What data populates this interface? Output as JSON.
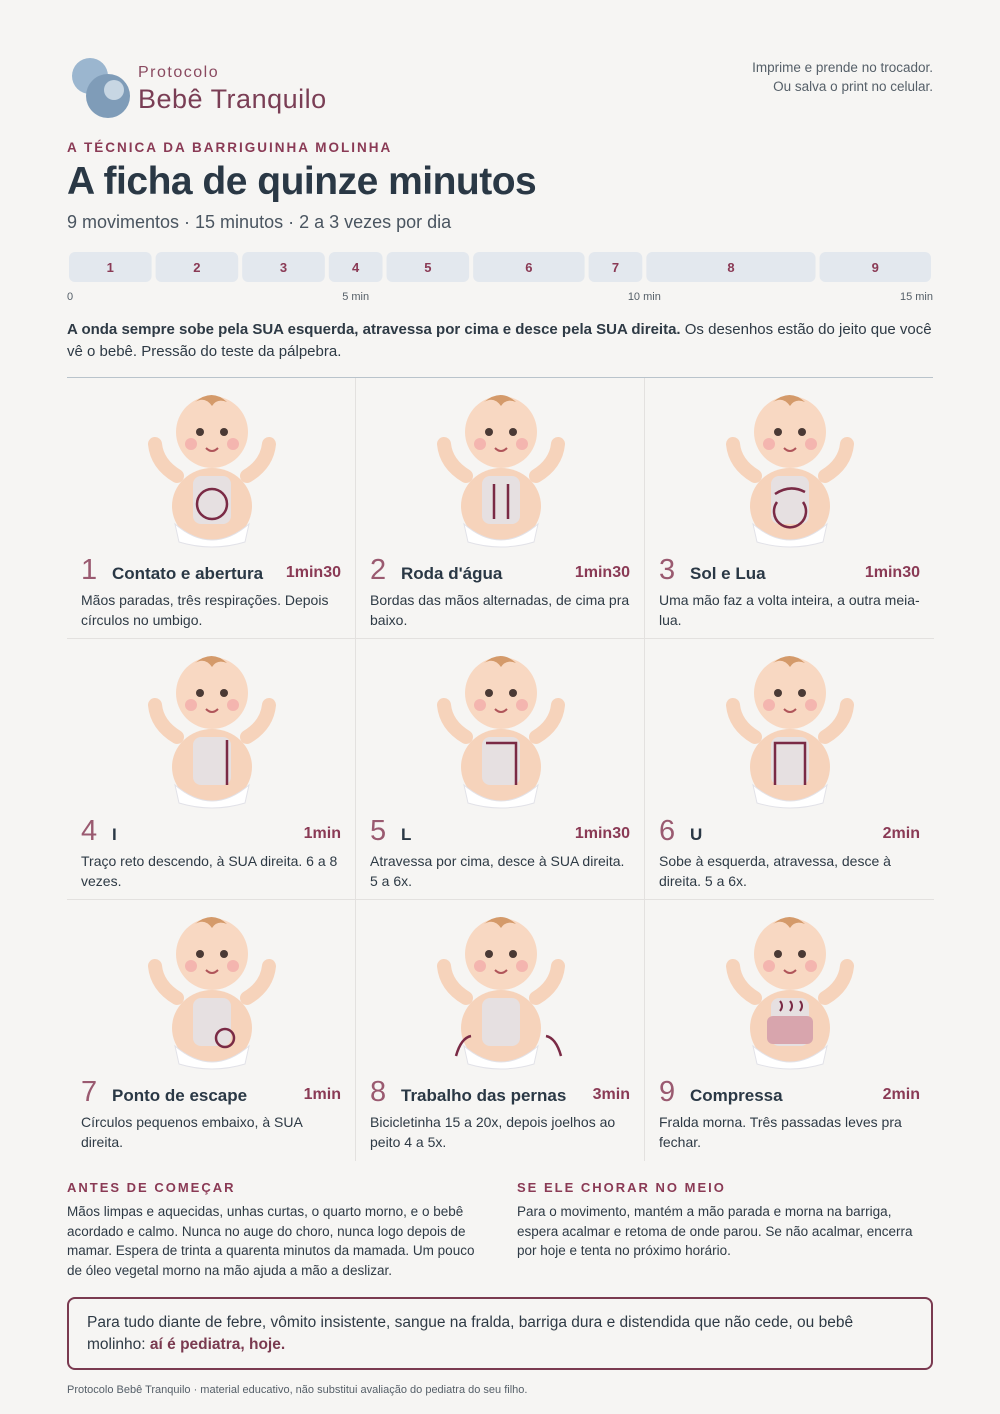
{
  "header": {
    "brand_small": "Protocolo",
    "brand": "Bebê Tranquilo",
    "note": [
      "Imprime e prende no trocador.",
      "Ou salva o print no celular."
    ]
  },
  "kicker": "A TÉCNICA DA BARRIGUINHA MOLINHA",
  "title": "A ficha de quinze minutos",
  "subtitle": "9 movimentos · 15 minutos · 2 a 3 vezes por dia",
  "timeline": {
    "xlim": [
      0,
      15
    ],
    "ticks": [
      0,
      {
        "value": 5,
        "label": "5 min"
      },
      {
        "value": 10,
        "label": "10 min"
      },
      {
        "value": 15,
        "label": "15 min"
      }
    ],
    "segments": [
      {
        "label": "1",
        "minutes": 1.5
      },
      {
        "label": "2",
        "minutes": 1.5
      },
      {
        "label": "3",
        "minutes": 1.5
      },
      {
        "label": "4",
        "minutes": 1
      },
      {
        "label": "5",
        "minutes": 1.5
      },
      {
        "label": "6",
        "minutes": 2
      },
      {
        "label": "7",
        "minutes": 1
      },
      {
        "label": "8",
        "minutes": 3
      },
      {
        "label": "9",
        "minutes": 2
      }
    ]
  },
  "intro": {
    "bold": "A onda sempre sobe pela SUA esquerda, atravessa por cima e desce pela SUA direita.",
    "text": "Os desenhos estão do jeito que você vê o bebê. Pressão do teste da pálpebra."
  },
  "steps": [
    {
      "number": "1",
      "name": "Contato e abertura",
      "duration": "1min30",
      "description": "Mãos paradas, três respirações. Depois círculos no umbigo."
    },
    {
      "number": "2",
      "name": "Roda d'água",
      "duration": "1min30",
      "description": "Bordas das mãos alternadas, de cima pra baixo."
    },
    {
      "number": "3",
      "name": "Sol e Lua",
      "duration": "1min30",
      "description": "Uma mão faz a volta inteira, a outra meia-lua."
    },
    {
      "number": "4",
      "name": "I",
      "duration": "1min",
      "description": "Traço reto descendo, à SUA direita. 6 a 8 vezes."
    },
    {
      "number": "5",
      "name": "L",
      "duration": "1min30",
      "description": "Atravessa por cima, desce à SUA direita. 5 a 6x."
    },
    {
      "number": "6",
      "name": "U",
      "duration": "2min",
      "description": "Sobe à esquerda, atravessa, desce à direita. 5 a 6x."
    },
    {
      "number": "7",
      "name": "Ponto de escape",
      "duration": "1min",
      "description": "Círculos pequenos embaixo, à SUA direita."
    },
    {
      "number": "8",
      "name": "Trabalho das pernas",
      "duration": "3min",
      "description": "Bicicletinha 15 a 20x, depois joelhos ao peito 4 a 5x."
    },
    {
      "number": "9",
      "name": "Compressa",
      "duration": "2min",
      "description": "Fralda morna. Três passadas leves pra fechar."
    }
  ],
  "before": {
    "heading": "ANTES DE COMEÇAR",
    "text": "Mãos limpas e aquecidas, unhas curtas, o quarto morno, e o bebê acordado e calmo. Nunca no auge do choro, nunca logo depois de mamar. Espera de trinta a quarenta minutos da mamada. Um pouco de óleo vegetal morno na mão ajuda a mão a deslizar."
  },
  "crying": {
    "heading": "SE ELE CHORAR NO MEIO",
    "text": "Para o movimento, mantém a mão parada e morna na barriga, espera acalmar e retoma de onde parou. Se não acalmar, encerra por hoje e tenta no próximo horário."
  },
  "alert": {
    "text": "Para tudo diante de febre, vômito insistente, sangue na fralda, barriga dura e distendida que não cede, ou bebê molinho:",
    "emphasis": "aí é pediatra, hoje."
  },
  "footer": "Protocolo Bebê Tranquilo · material educativo, não substitui avaliação do pediatra do seu filho."
}
